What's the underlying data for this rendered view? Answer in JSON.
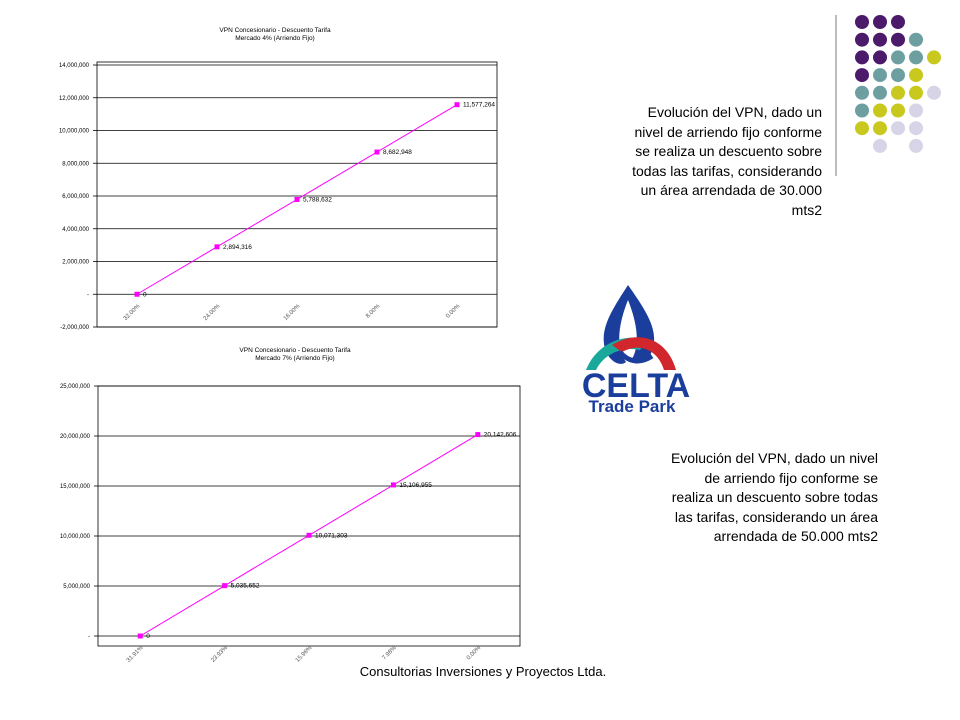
{
  "chart_data": [
    {
      "type": "line",
      "title": "VPN Concesionario - Descuento Tarifa",
      "subtitle": "Mercado 4% (Arriendo Fijo)",
      "categories": [
        "32.00%",
        "24.00%",
        "16.00%",
        "8.00%",
        "0.00%"
      ],
      "series": [
        {
          "color": "#ff00ff",
          "values": [
            0,
            2894316,
            5788632,
            8682948,
            11577264
          ],
          "value_labels": [
            "0",
            "2,894,316",
            "5,788,632",
            "8,682,948",
            "11,577,264"
          ]
        }
      ],
      "ylim": [
        -2000000,
        14000000
      ],
      "yticks": [
        {
          "value": -2000000,
          "label": "-2,000,000"
        },
        {
          "value": 0,
          "label": "-"
        },
        {
          "value": 2000000,
          "label": "2,000,000"
        },
        {
          "value": 4000000,
          "label": "4,000,000"
        },
        {
          "value": 6000000,
          "label": "6,000,000"
        },
        {
          "value": 8000000,
          "label": "8,000,000"
        },
        {
          "value": 10000000,
          "label": "10,000,000"
        },
        {
          "value": 12000000,
          "label": "12,000,000"
        },
        {
          "value": 14000000,
          "label": "14,000,000"
        }
      ],
      "grid": true
    },
    {
      "type": "line",
      "title": "VPN Concesionario - Descuento Tarifa",
      "subtitle": "Mercado 7% (Arriendo Fijo)",
      "categories": [
        "31.91%",
        "23.93%",
        "15.96%",
        "7.98%",
        "0.00%"
      ],
      "series": [
        {
          "color": "#ff00ff",
          "values": [
            0,
            5035652,
            10071303,
            15106955,
            20142606
          ],
          "value_labels": [
            "0",
            "5,035,652",
            "10,071,303",
            "15,106,955",
            "20,142,606"
          ]
        }
      ],
      "ylim": [
        0,
        25000000
      ],
      "yticks": [
        {
          "value": 0,
          "label": "-"
        },
        {
          "value": 5000000,
          "label": "5,000,000"
        },
        {
          "value": 10000000,
          "label": "10,000,000"
        },
        {
          "value": 15000000,
          "label": "15,000,000"
        },
        {
          "value": 20000000,
          "label": "20,000,000"
        },
        {
          "value": 25000000,
          "label": "25,000,000"
        }
      ],
      "grid": true
    }
  ],
  "slide": {
    "text_top": "Evolución del VPN, dado un nivel de arriendo fijo conforme se realiza un descuento sobre todas las tarifas, considerando un área arrendada de 30.000 mts2",
    "text_bottom": "Evolución del VPN, dado un nivel de arriendo fijo conforme se realiza un descuento sobre todas las tarifas, considerando un área arrendada de 50.000 mts2",
    "logo_name": "CELTA",
    "logo_tagline": "Trade Park",
    "footer": "Consultorias Inversiones y Proyectos Ltda."
  }
}
